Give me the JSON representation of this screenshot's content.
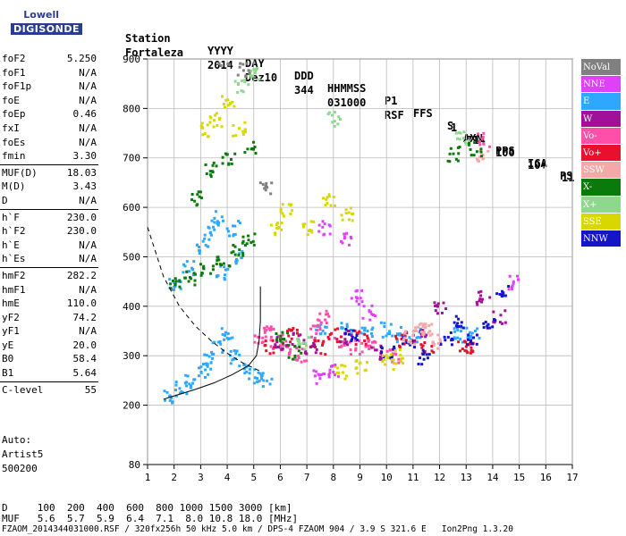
{
  "logo": {
    "line1": "Lowell",
    "line2": "DIGISONDE"
  },
  "header": {
    "labels": [
      "Station",
      "YYYY",
      "DAY",
      "DDD",
      "HHMMSS",
      "P1",
      "FFS",
      "S",
      "AXN",
      "PPS",
      "IGA",
      "PS"
    ],
    "values": [
      "Fortaleza",
      "2014",
      "Dez10",
      "344",
      "031000",
      "RSF",
      "1",
      "714",
      "100",
      "10+",
      "11"
    ]
  },
  "params": [
    [
      [
        "foF2",
        "5.250"
      ],
      [
        "foF1",
        "N/A"
      ],
      [
        "foF1p",
        "N/A"
      ],
      [
        "foE",
        "N/A"
      ],
      [
        "foEp",
        "0.46"
      ],
      [
        "fxI",
        "N/A"
      ],
      [
        "foEs",
        "N/A"
      ],
      [
        "fmin",
        "3.30"
      ]
    ],
    [
      [
        "MUF(D)",
        "18.03"
      ],
      [
        "M(D)",
        "3.43"
      ],
      [
        "D",
        "N/A"
      ]
    ],
    [
      [
        "h`F",
        "230.0"
      ],
      [
        "h`F2",
        "230.0"
      ],
      [
        "h`E",
        "N/A"
      ],
      [
        "h`Es",
        "N/A"
      ]
    ],
    [
      [
        "hmF2",
        "282.2"
      ],
      [
        "hmF1",
        "N/A"
      ],
      [
        "hmE",
        "110.0"
      ],
      [
        "yF2",
        "74.2"
      ],
      [
        "yF1",
        "N/A"
      ],
      [
        "yE",
        "20.0"
      ],
      [
        "B0",
        "58.4"
      ],
      [
        "B1",
        "5.64"
      ]
    ],
    [
      [
        "C-level",
        "55"
      ]
    ]
  ],
  "auto": [
    "Auto:",
    "Artist5",
    "500200"
  ],
  "legend": [
    {
      "label": "NoVal",
      "color": "#808080"
    },
    {
      "label": "NNE",
      "color": "#e040fb"
    },
    {
      "label": "E",
      "color": "#2ea8ff"
    },
    {
      "label": "W",
      "color": "#a0109a"
    },
    {
      "label": "Vo-",
      "color": "#ff4fa8"
    },
    {
      "label": "Vo+",
      "color": "#e8102e"
    },
    {
      "label": "SSW",
      "color": "#f4a8a8"
    },
    {
      "label": "X-",
      "color": "#0a7a0a"
    },
    {
      "label": "X+",
      "color": "#8ed88e"
    },
    {
      "label": "SSE",
      "color": "#d8d800"
    },
    {
      "label": "NNW",
      "color": "#1414c8"
    }
  ],
  "footer": {
    "d_row": "D     100  200  400  600  800 1000 1500 3000 [km]",
    "muf_row": "MUF   5.6  5.7  5.9  6.4  7.1  8.0 10.8 18.0 [MHz]",
    "file_row": "FZAOM_2014344031000.RSF / 320fx256h 50 kHz 5.0 km / DPS-4 FZAOM 904 / 3.9 S 321.6 E   Ion2Png 1.3.20"
  },
  "chart_data": {
    "type": "scatter",
    "title": "",
    "xlabel": "",
    "ylabel": "",
    "xlim": [
      1,
      17
    ],
    "ylim": [
      80,
      900
    ],
    "xticks": [
      1,
      2,
      3,
      4,
      5,
      6,
      7,
      8,
      9,
      10,
      11,
      12,
      13,
      14,
      15,
      16,
      17
    ],
    "yticks": [
      80,
      200,
      300,
      400,
      500,
      600,
      700,
      800,
      900
    ],
    "grid": true,
    "legend_position": "right",
    "series": [
      {
        "name": "E",
        "color": "#2ea8ff",
        "points": [
          [
            1.8,
            220
          ],
          [
            2.2,
            235
          ],
          [
            2.6,
            250
          ],
          [
            3.0,
            270
          ],
          [
            3.3,
            290
          ],
          [
            3.6,
            320
          ],
          [
            4.0,
            350
          ],
          [
            4.3,
            300
          ],
          [
            4.6,
            270
          ],
          [
            5.0,
            260
          ],
          [
            5.4,
            255
          ],
          [
            2.0,
            450
          ],
          [
            2.5,
            480
          ],
          [
            3.0,
            520
          ],
          [
            3.3,
            550
          ],
          [
            3.6,
            580
          ],
          [
            4.2,
            560
          ],
          [
            3.8,
            470
          ],
          [
            4.5,
            500
          ],
          [
            7.5,
            355
          ],
          [
            8.5,
            360
          ],
          [
            9.2,
            350
          ],
          [
            10.0,
            355
          ],
          [
            10.6,
            345
          ],
          [
            11.0,
            345
          ],
          [
            12.6,
            345
          ],
          [
            13.2,
            350
          ]
        ]
      },
      {
        "name": "Vo-",
        "color": "#ff4fa8",
        "points": [
          [
            5.2,
            340
          ],
          [
            5.5,
            350
          ],
          [
            5.8,
            330
          ],
          [
            6.2,
            320
          ],
          [
            6.7,
            305
          ],
          [
            7.3,
            350
          ],
          [
            7.6,
            380
          ],
          [
            8.2,
            330
          ],
          [
            8.8,
            320
          ],
          [
            9.4,
            330
          ],
          [
            10.2,
            300
          ],
          [
            13.6,
            740
          ]
        ]
      },
      {
        "name": "Vo+",
        "color": "#e8102e",
        "points": [
          [
            5.6,
            320
          ],
          [
            6.4,
            345
          ],
          [
            7.4,
            320
          ],
          [
            8.0,
            345
          ],
          [
            9.0,
            340
          ],
          [
            10.5,
            335
          ],
          [
            11.5,
            320
          ],
          [
            12.9,
            320
          ],
          [
            13.0,
            320
          ]
        ]
      },
      {
        "name": "W",
        "color": "#a0109a",
        "points": [
          [
            6.0,
            330
          ],
          [
            6.6,
            335
          ],
          [
            7.1,
            320
          ],
          [
            8.4,
            340
          ],
          [
            9.6,
            310
          ],
          [
            11.2,
            340
          ],
          [
            12.0,
            400
          ],
          [
            13.6,
            420
          ],
          [
            14.2,
            380
          ]
        ]
      },
      {
        "name": "NNW",
        "color": "#1414c8",
        "points": [
          [
            10.0,
            310
          ],
          [
            10.8,
            335
          ],
          [
            11.4,
            300
          ],
          [
            12.2,
            340
          ],
          [
            12.7,
            370
          ],
          [
            13.2,
            330
          ],
          [
            13.8,
            370
          ],
          [
            14.3,
            430
          ],
          [
            8.6,
            345
          ]
        ]
      },
      {
        "name": "SSE",
        "color": "#d8d800",
        "points": [
          [
            3.2,
            760
          ],
          [
            3.5,
            780
          ],
          [
            4.0,
            820
          ],
          [
            4.4,
            760
          ],
          [
            5.8,
            560
          ],
          [
            6.2,
            600
          ],
          [
            7.0,
            560
          ],
          [
            7.8,
            620
          ],
          [
            8.5,
            590
          ],
          [
            8.2,
            270
          ],
          [
            9.0,
            280
          ],
          [
            10.0,
            290
          ],
          [
            10.4,
            300
          ]
        ]
      },
      {
        "name": "SSW",
        "color": "#f4a8a8",
        "points": [
          [
            10.8,
            340
          ],
          [
            11.2,
            355
          ],
          [
            11.5,
            360
          ],
          [
            11.8,
            330
          ],
          [
            13.6,
            710
          ]
        ]
      },
      {
        "name": "X-",
        "color": "#0a7a0a",
        "points": [
          [
            2.0,
            445
          ],
          [
            2.6,
            460
          ],
          [
            3.2,
            480
          ],
          [
            3.8,
            490
          ],
          [
            4.3,
            520
          ],
          [
            4.8,
            540
          ],
          [
            3.3,
            680
          ],
          [
            4.0,
            700
          ],
          [
            4.8,
            720
          ],
          [
            6.0,
            340
          ],
          [
            6.5,
            310
          ],
          [
            12.5,
            710
          ],
          [
            13.3,
            720
          ],
          [
            2.8,
            620
          ]
        ]
      },
      {
        "name": "X+",
        "color": "#8ed88e",
        "points": [
          [
            4.5,
            850
          ],
          [
            5.0,
            870
          ],
          [
            8.0,
            780
          ],
          [
            12.8,
            740
          ],
          [
            6.8,
            330
          ]
        ]
      },
      {
        "name": "NNE",
        "color": "#e040fb",
        "points": [
          [
            7.4,
            260
          ],
          [
            8.0,
            270
          ],
          [
            8.8,
            420
          ],
          [
            9.3,
            390
          ],
          [
            14.8,
            450
          ],
          [
            7.6,
            560
          ],
          [
            8.4,
            540
          ]
        ]
      },
      {
        "name": "NoVal",
        "color": "#808080",
        "points": [
          [
            3.8,
            900
          ],
          [
            4.6,
            880
          ],
          [
            5.4,
            640
          ]
        ]
      }
    ],
    "profile_curve": [
      [
        1.6,
        212
      ],
      [
        2.2,
        222
      ],
      [
        2.8,
        232
      ],
      [
        3.5,
        245
      ],
      [
        4.2,
        262
      ],
      [
        4.8,
        280
      ],
      [
        5.1,
        300
      ],
      [
        5.2,
        330
      ],
      [
        5.25,
        370
      ],
      [
        5.25,
        440
      ]
    ],
    "muf_curve": [
      [
        1.0,
        560
      ],
      [
        1.6,
        460
      ],
      [
        2.2,
        400
      ],
      [
        2.8,
        360
      ],
      [
        3.4,
        330
      ],
      [
        4.0,
        305
      ],
      [
        4.6,
        285
      ],
      [
        5.2,
        270
      ]
    ]
  }
}
